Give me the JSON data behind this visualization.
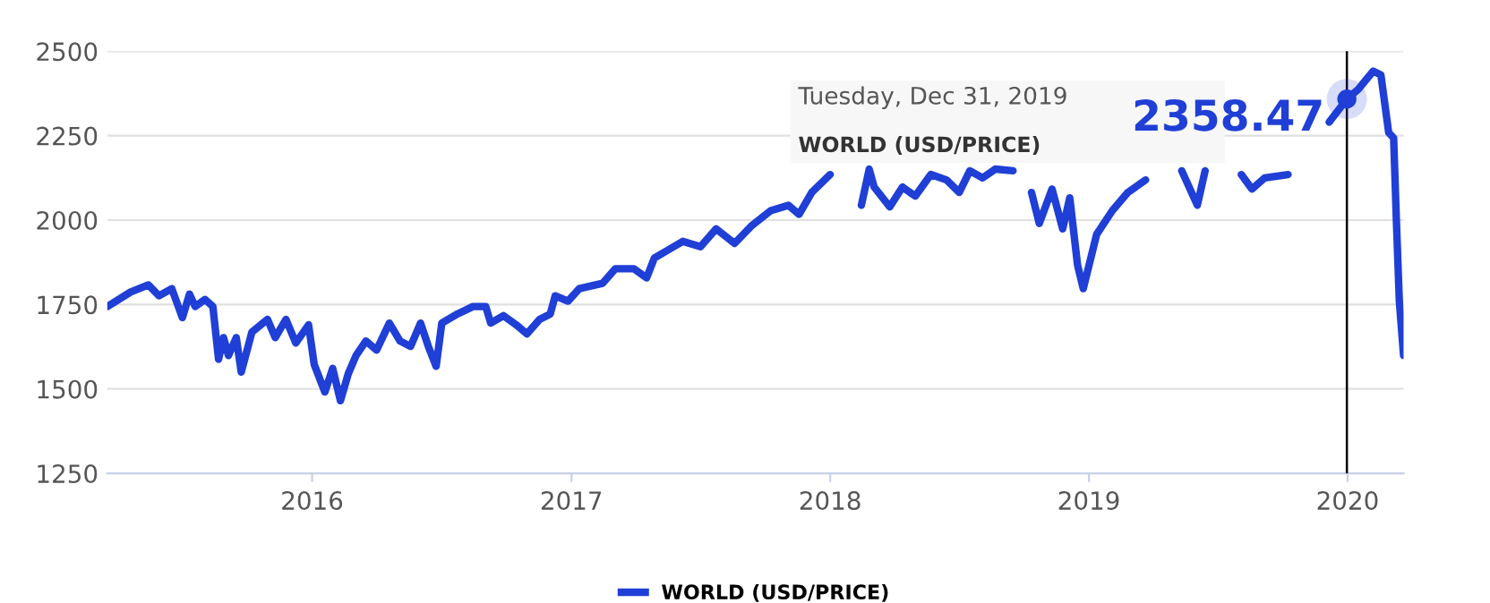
{
  "chart_data": {
    "type": "line",
    "x": [
      "2015-03-18",
      "2015-04-20",
      "2015-05-15",
      "2015-05-30",
      "2015-06-17",
      "2015-07-02",
      "2015-07-12",
      "2015-07-20",
      "2015-08-03",
      "2015-08-14",
      "2015-08-22",
      "2015-08-29",
      "2015-09-05",
      "2015-09-16",
      "2015-09-23",
      "2015-10-08",
      "2015-10-30",
      "2015-11-10",
      "2015-11-25",
      "2015-12-09",
      "2015-12-27",
      "2016-01-04",
      "2016-01-19",
      "2016-01-30",
      "2016-02-10",
      "2016-02-21",
      "2016-03-03",
      "2016-03-17",
      "2016-04-01",
      "2016-04-19",
      "2016-05-04",
      "2016-05-19",
      "2016-06-02",
      "2016-06-13",
      "2016-06-24",
      "2016-07-02",
      "2016-07-24",
      "2016-08-15",
      "2016-09-02",
      "2016-09-09",
      "2016-09-27",
      "2016-10-15",
      "2016-10-30",
      "2016-11-17",
      "2016-12-02",
      "2016-12-09",
      "2016-12-27",
      "2017-01-12",
      "2017-02-14",
      "2017-03-04",
      "2017-03-30",
      "2017-04-17",
      "2017-04-28",
      "2017-05-16",
      "2017-06-07",
      "2017-07-02",
      "2017-07-24",
      "2017-08-19",
      "2017-09-13",
      "2017-10-09",
      "2017-11-03",
      "2017-11-18",
      "2017-12-06",
      "2018-01-01",
      "2018-01-15",
      "2018-02-14",
      "2018-02-25",
      "2018-03-04",
      "2018-03-26",
      "2018-04-13",
      "2018-05-01",
      "2018-05-23",
      "2018-06-14",
      "2018-07-02",
      "2018-07-17",
      "2018-08-04",
      "2018-08-22",
      "2018-09-16",
      "2018-09-25",
      "2018-10-12",
      "2018-10-23",
      "2018-11-10",
      "2018-11-25",
      "2018-12-05",
      "2018-12-16",
      "2018-12-24",
      "2019-01-12",
      "2019-02-03",
      "2019-02-25",
      "2019-03-22",
      "2019-04-15",
      "2019-05-12",
      "2019-06-03",
      "2019-06-14",
      "2019-07-10",
      "2019-08-04",
      "2019-08-19",
      "2019-09-06",
      "2019-10-09",
      "2019-11-15",
      "2019-12-06",
      "2019-12-31",
      "2020-01-16",
      "2020-02-06",
      "2020-02-17",
      "2020-02-28",
      "2020-03-06",
      "2020-03-10",
      "2020-03-14",
      "2020-03-20"
    ],
    "series": [
      {
        "name": "WORLD (USD/PRICE)",
        "color": "#1f3fd6",
        "values": [
          1744,
          1787,
          1808,
          1776,
          1797,
          1711,
          1781,
          1744,
          1765,
          1744,
          1588,
          1652,
          1599,
          1652,
          1550,
          1668,
          1706,
          1652,
          1706,
          1636,
          1690,
          1572,
          1491,
          1561,
          1465,
          1545,
          1599,
          1642,
          1615,
          1695,
          1642,
          1626,
          1695,
          1626,
          1567,
          1695,
          1722,
          1744,
          1744,
          1695,
          1717,
          1690,
          1663,
          1706,
          1722,
          1776,
          1760,
          1797,
          1813,
          1856,
          1856,
          1829,
          1888,
          1910,
          1937,
          1921,
          1974,
          1931,
          1985,
          2028,
          2044,
          2017,
          2082,
          2135,
          null,
          2044,
          2151,
          2098,
          2039,
          2098,
          2071,
          2135,
          2119,
          2082,
          2146,
          2125,
          2151,
          2146,
          null,
          2082,
          1990,
          2092,
          1974,
          2066,
          1867,
          1797,
          1958,
          2028,
          2082,
          2119,
          null,
          2146,
          2044,
          2146,
          null,
          2135,
          2092,
          2125,
          2135,
          null,
          2290,
          2358.47,
          2387,
          2441,
          2430,
          2259,
          2243,
          1990,
          1760,
          1599
        ]
      }
    ],
    "xlim": [
      "2015-03-18",
      "2020-03-20"
    ],
    "ylim": [
      1250,
      2500
    ],
    "xticks": [
      "2016",
      "2017",
      "2018",
      "2019",
      "2020"
    ],
    "yticks": [
      1250,
      1500,
      1750,
      2000,
      2250,
      2500
    ],
    "grid": "y",
    "legend": "bottom",
    "marker": "none",
    "line_style": "solid",
    "ref_lines": [
      {
        "axis": "x",
        "value": "2019-12-31",
        "color": "#000000"
      }
    ],
    "annotations": [
      "Tuesday, Dec 31, 2019",
      "WORLD (USD/PRICE)",
      {
        "text": "2358.47",
        "x": "2019-12-31",
        "y": 2358.47
      }
    ]
  }
}
